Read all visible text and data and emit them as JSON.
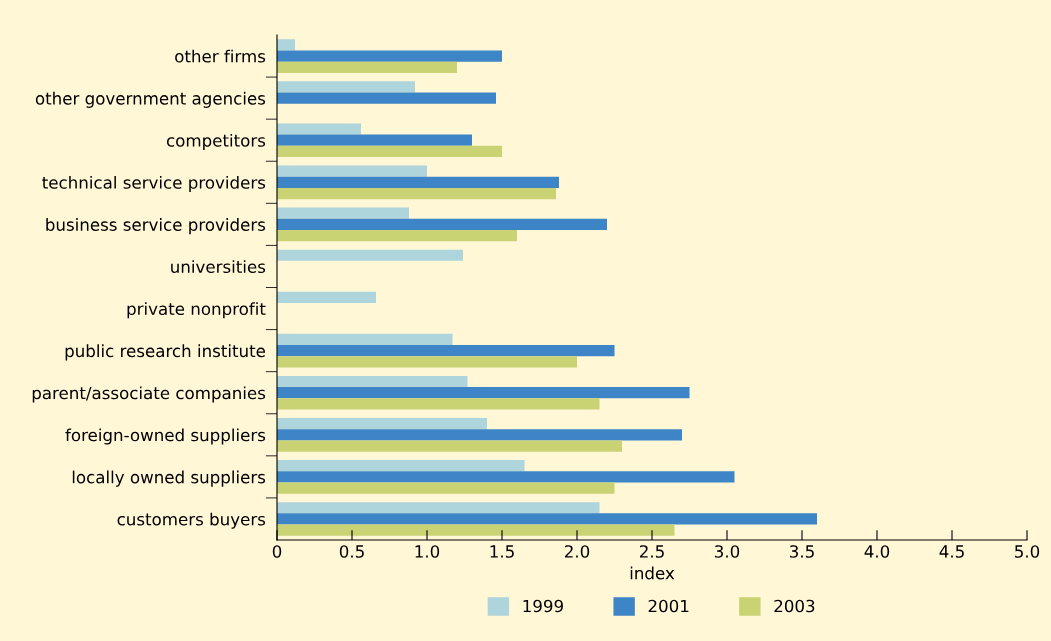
{
  "chart_data": {
    "type": "bar",
    "orientation": "horizontal",
    "xlabel": "index",
    "categories": [
      "other firms",
      "other government agencies",
      "competitors",
      "technical service providers",
      "business service providers",
      "universities",
      "private nonprofit",
      "public research institute",
      "parent/associate companies",
      "foreign-owned suppliers",
      "locally owned suppliers",
      "customers buyers"
    ],
    "series": [
      {
        "name": "1999",
        "color": "#aed4dc",
        "values": [
          0.12,
          0.92,
          0.56,
          1.0,
          0.88,
          1.24,
          0.66,
          1.17,
          1.27,
          1.4,
          1.65,
          2.15
        ]
      },
      {
        "name": "2001",
        "color": "#3d85c6",
        "values": [
          1.5,
          1.46,
          1.3,
          1.88,
          2.2,
          null,
          null,
          2.25,
          2.75,
          2.7,
          3.05,
          3.6
        ]
      },
      {
        "name": "2003",
        "color": "#c9d373",
        "values": [
          1.2,
          null,
          1.5,
          1.86,
          1.6,
          null,
          null,
          2.0,
          2.15,
          2.3,
          2.25,
          2.65
        ]
      }
    ],
    "xlim": [
      0,
      5.0
    ],
    "xticks": [
      0,
      0.5,
      {
        "value": 1,
        "label": "1.0"
      },
      1.5,
      {
        "value": 2,
        "label": "2.0"
      },
      2.5,
      {
        "value": 3,
        "label": "3.0"
      },
      3.5,
      {
        "value": 4,
        "label": "4.0"
      },
      4.5,
      {
        "value": 5,
        "label": "5.0"
      }
    ],
    "grid": false,
    "legend": "bottom"
  }
}
